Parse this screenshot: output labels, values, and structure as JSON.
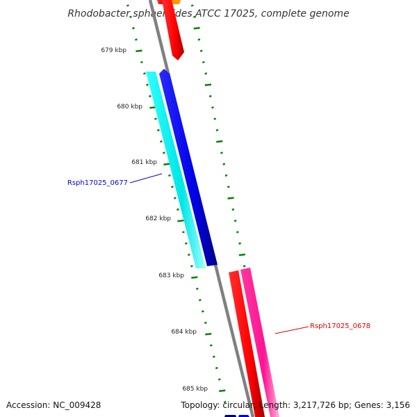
{
  "title": "Rhodobacter sphaeroides ATCC 17025, complete genome",
  "scale_labels": [
    "679 kbp",
    "680 kbp",
    "681 kbp",
    "682 kbp",
    "683 kbp",
    "684 kbp",
    "685 kbp"
  ],
  "genes": [
    {
      "id": "gene-rsph17025-0677",
      "label": "Rsph17025_0677",
      "label_color": "#0000cc"
    },
    {
      "id": "gene-rsph17025-0678",
      "label": "Rsph17025_0678",
      "label_color": "#dd0000"
    }
  ],
  "footer": {
    "accession": "Accession: NC_009428",
    "topology": "Topology: circular; Length: 3,217,726 bp; Genes: 3,156"
  },
  "colors": {
    "backbone": "#808080",
    "tick": "#008000",
    "blue_gene": "#0000ee",
    "cyan_gene": "#00e5e5",
    "red_gene": "#ff0000",
    "pink_gene": "#ff1493",
    "orange_gene": "#ff9900",
    "navy_gene": "#000080"
  }
}
